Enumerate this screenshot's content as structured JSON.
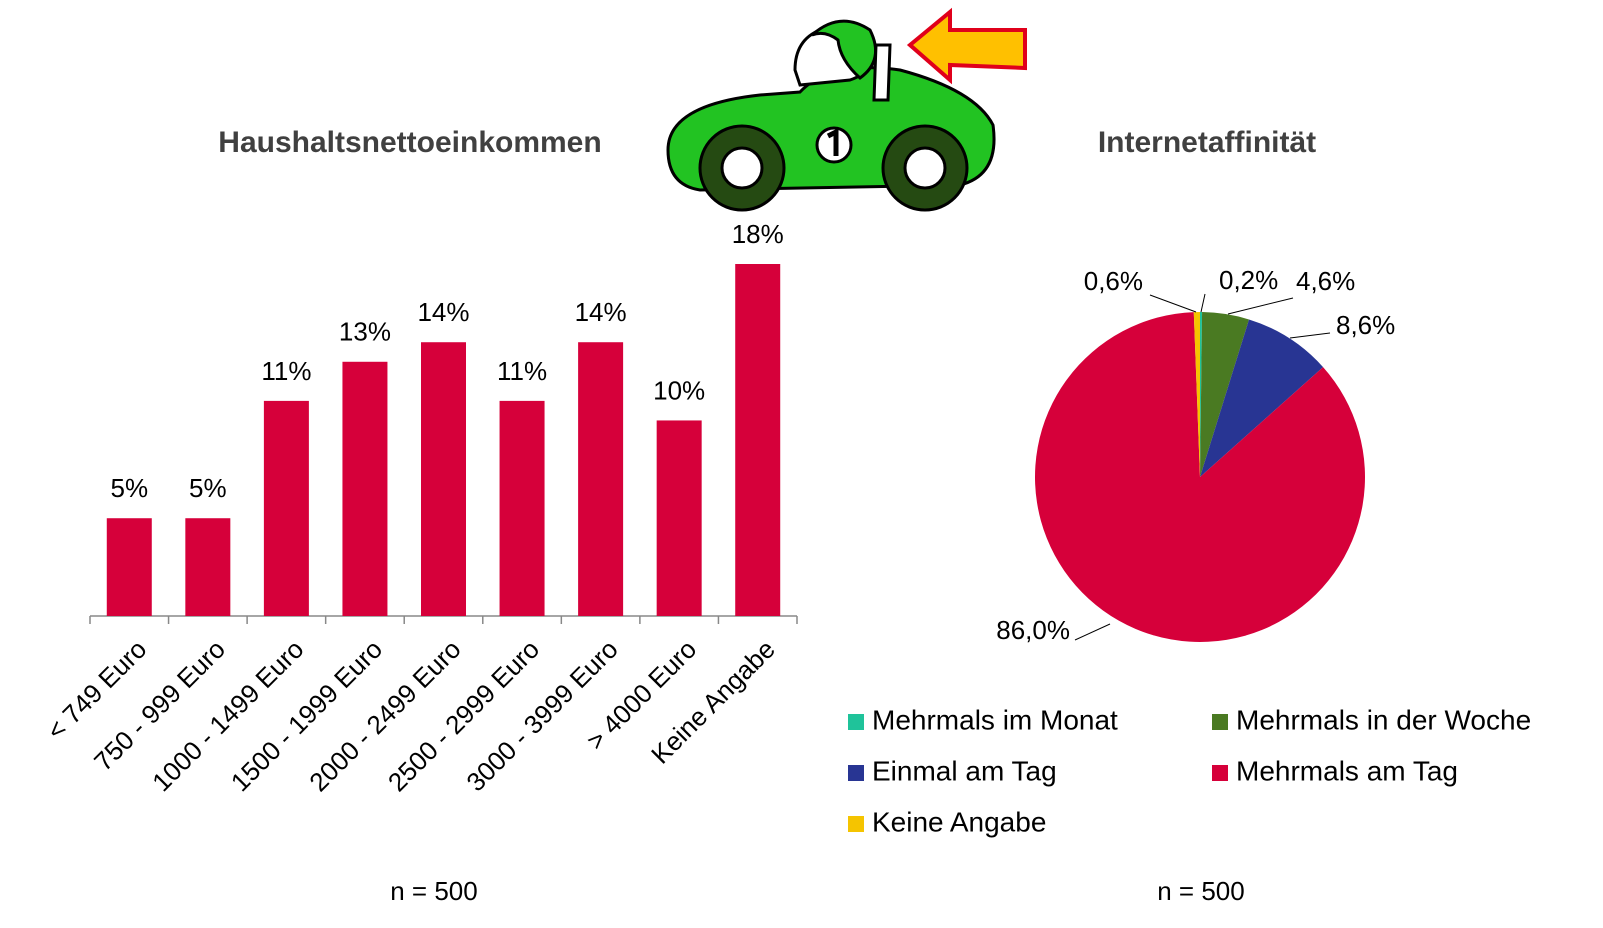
{
  "chart_data": [
    {
      "type": "bar",
      "title": "Haushaltsnettoeinkommen",
      "note": "n = 500",
      "categories": [
        "< 749 Euro",
        "750 - 999 Euro",
        "1000 - 1499 Euro",
        "1500 - 1999 Euro",
        "2000 - 2499 Euro",
        "2500 - 2999 Euro",
        "3000 - 3999 Euro",
        "> 4000 Euro",
        "Keine Angabe"
      ],
      "values": [
        5,
        5,
        11,
        13,
        14,
        11,
        14,
        10,
        18
      ],
      "value_labels": [
        "5%",
        "5%",
        "11%",
        "13%",
        "14%",
        "11%",
        "14%",
        "10%",
        "18%"
      ],
      "color": "#d6003a"
    },
    {
      "type": "pie",
      "title": "Internetaffinität",
      "note": "n = 500",
      "categories": [
        "Mehrmals im Monat",
        "Mehrmals in der Woche",
        "Einmal am Tag",
        "Mehrmals am Tag",
        "Keine Angabe"
      ],
      "values": [
        0.2,
        4.6,
        8.6,
        86.0,
        0.6
      ],
      "value_labels": [
        "0,2%",
        "4,6%",
        "8,6%",
        "86,0%",
        "0,6%"
      ],
      "colors": [
        "#1fc39a",
        "#4a7a22",
        "#283593",
        "#d6003a",
        "#f5c400"
      ]
    }
  ]
}
